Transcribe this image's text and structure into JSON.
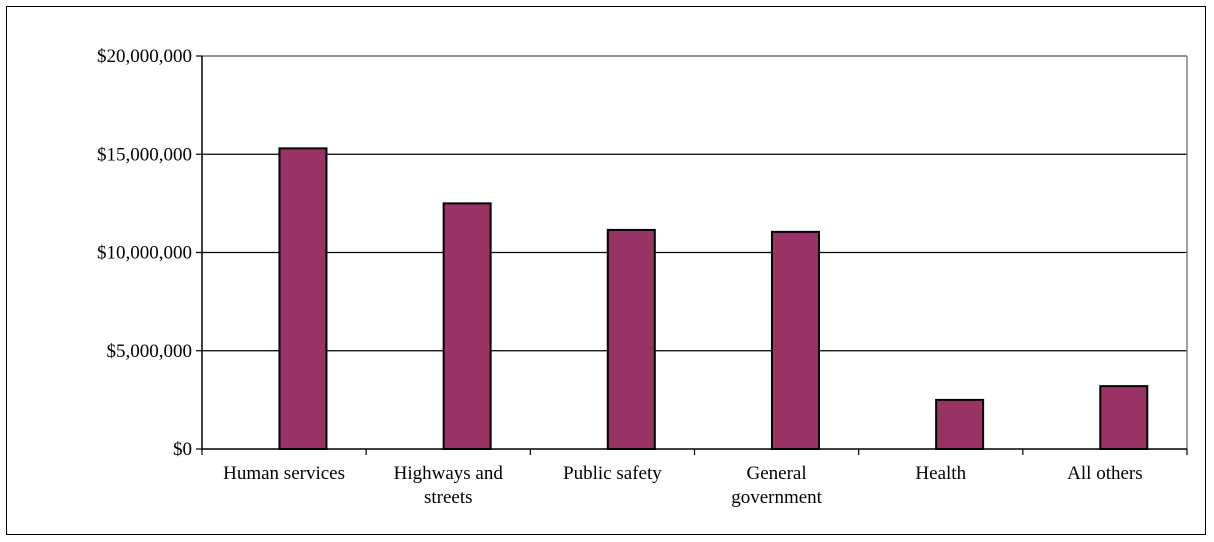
{
  "chart_data": {
    "type": "bar",
    "categories": [
      [
        "Human services"
      ],
      [
        "Highways and",
        "streets"
      ],
      [
        "Public safety"
      ],
      [
        "General",
        "government"
      ],
      [
        "Health"
      ],
      [
        "All others"
      ]
    ],
    "values": [
      15300000,
      12500000,
      11150000,
      11050000,
      2500000,
      3200000
    ],
    "title": "",
    "xlabel": "",
    "ylabel": "",
    "ylim": [
      0,
      20000000
    ],
    "yticks": [
      0,
      5000000,
      10000000,
      15000000,
      20000000
    ],
    "ytick_labels": [
      "$0",
      "$5,000,000",
      "$10,000,000",
      "$15,000,000",
      "$20,000,000"
    ],
    "grid": true,
    "legend": "none",
    "colors": {
      "bar": "#993366",
      "bar_edge": "#000000",
      "grid": "#000000",
      "plot_border": "#808080"
    }
  }
}
